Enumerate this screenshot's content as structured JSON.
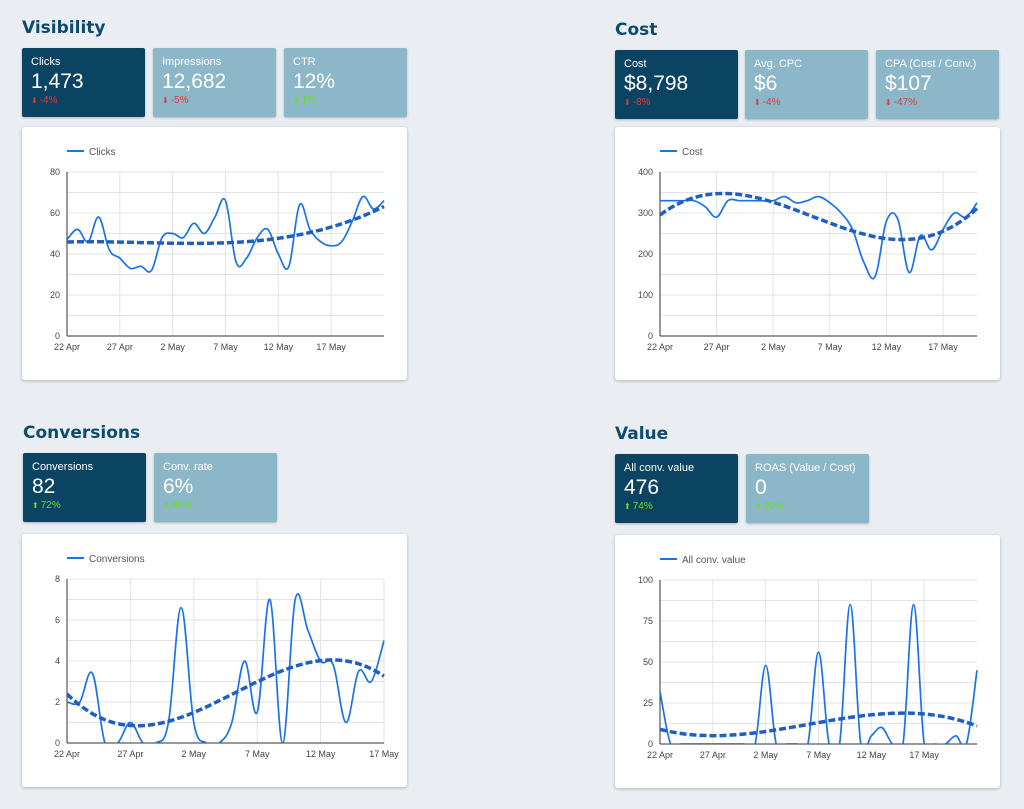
{
  "sections": {
    "visibility": {
      "title": "Visibility",
      "kpis": [
        {
          "label": "Clicks",
          "value": "1,473",
          "delta": "-4%",
          "direction": "down"
        },
        {
          "label": "Impressions",
          "value": "12,682",
          "delta": "-5%",
          "direction": "down"
        },
        {
          "label": "CTR",
          "value": "12%",
          "delta": "1%",
          "direction": "up"
        }
      ]
    },
    "cost": {
      "title": "Cost",
      "kpis": [
        {
          "label": "Cost",
          "value": "$8,798",
          "delta": "-8%",
          "direction": "down"
        },
        {
          "label": "Avg. CPC",
          "value": "$6",
          "delta": "-4%",
          "direction": "down"
        },
        {
          "label": "CPA (Cost / Conv.)",
          "value": "$107",
          "delta": "-47%",
          "direction": "down"
        }
      ]
    },
    "conversions": {
      "title": "Conversions",
      "kpis": [
        {
          "label": "Conversions",
          "value": "82",
          "delta": "72%",
          "direction": "up"
        },
        {
          "label": "Conv. rate",
          "value": "6%",
          "delta": "80%",
          "direction": "up"
        }
      ]
    },
    "value": {
      "title": "Value",
      "kpis": [
        {
          "label": "All conv. value",
          "value": "476",
          "delta": "74%",
          "direction": "up"
        },
        {
          "label": "ROAS (Value / Cost)",
          "value": "0",
          "delta": "70%",
          "direction": "up"
        }
      ]
    }
  },
  "colors": {
    "series": "#1a73e8",
    "trend": "#1f5fc2",
    "kpi_dark": "#0b4462",
    "kpi_light": "#8bb7c9",
    "title": "#0d4a6b",
    "delta_down": "#e53935",
    "delta_up": "#69e01d"
  },
  "chart_data": [
    {
      "type": "line",
      "series": [
        {
          "name": "Clicks",
          "values": [
            47,
            52,
            46,
            58,
            42,
            38,
            33,
            34,
            32,
            48,
            50,
            48,
            55,
            50,
            58,
            66,
            36,
            38,
            48,
            52,
            40,
            34,
            64,
            52,
            46,
            44,
            46,
            56,
            68,
            62,
            66
          ]
        }
      ],
      "trendline": true,
      "x_ticks": [
        "22 Apr",
        "27 Apr",
        "2 May",
        "7 May",
        "12 May",
        "17 May"
      ],
      "y_ticks": [
        0,
        20,
        40,
        60,
        80
      ],
      "ylim": [
        0,
        80
      ],
      "legend": "top-left",
      "grid": true
    },
    {
      "type": "line",
      "series": [
        {
          "name": "Cost",
          "values": [
            330,
            330,
            330,
            330,
            315,
            290,
            330,
            330,
            330,
            330,
            330,
            340,
            325,
            330,
            340,
            325,
            300,
            260,
            180,
            145,
            280,
            285,
            155,
            245,
            210,
            260,
            300,
            290,
            325
          ]
        }
      ],
      "trendline": true,
      "x_ticks": [
        "22 Apr",
        "27 Apr",
        "2 May",
        "7 May",
        "12 May",
        "17 May"
      ],
      "y_ticks": [
        0,
        100,
        200,
        300,
        400
      ],
      "ylim": [
        0,
        400
      ],
      "legend": "top-left",
      "grid": true
    },
    {
      "type": "line",
      "series": [
        {
          "name": "Conversions",
          "values": [
            2,
            2,
            3.4,
            0,
            0,
            1,
            0,
            0,
            1,
            6.6,
            1,
            0,
            0,
            1,
            4,
            1.5,
            7,
            0,
            7,
            5.5,
            4,
            3.8,
            1,
            3.5,
            3,
            5
          ]
        }
      ],
      "trendline": true,
      "x_ticks": [
        "22 Apr",
        "27 Apr",
        "2 May",
        "7 May",
        "12 May",
        "17 May"
      ],
      "y_ticks": [
        0,
        2,
        4,
        6,
        8
      ],
      "ylim": [
        0,
        8
      ],
      "legend": "top-left",
      "grid": true
    },
    {
      "type": "line",
      "series": [
        {
          "name": "All conv. value",
          "values": [
            32,
            0,
            0,
            0,
            0,
            0,
            0,
            0,
            0,
            0,
            48,
            0,
            0,
            0,
            0,
            56,
            0,
            0,
            85,
            0,
            5,
            10,
            0,
            0,
            85,
            0,
            0,
            0,
            5,
            0,
            45
          ]
        }
      ],
      "trendline": true,
      "x_ticks": [
        "22 Apr",
        "27 Apr",
        "2 May",
        "7 May",
        "12 May",
        "17 May"
      ],
      "y_ticks": [
        0,
        25,
        50,
        75,
        100
      ],
      "ylim": [
        0,
        100
      ],
      "legend": "top-left",
      "grid": true
    }
  ]
}
